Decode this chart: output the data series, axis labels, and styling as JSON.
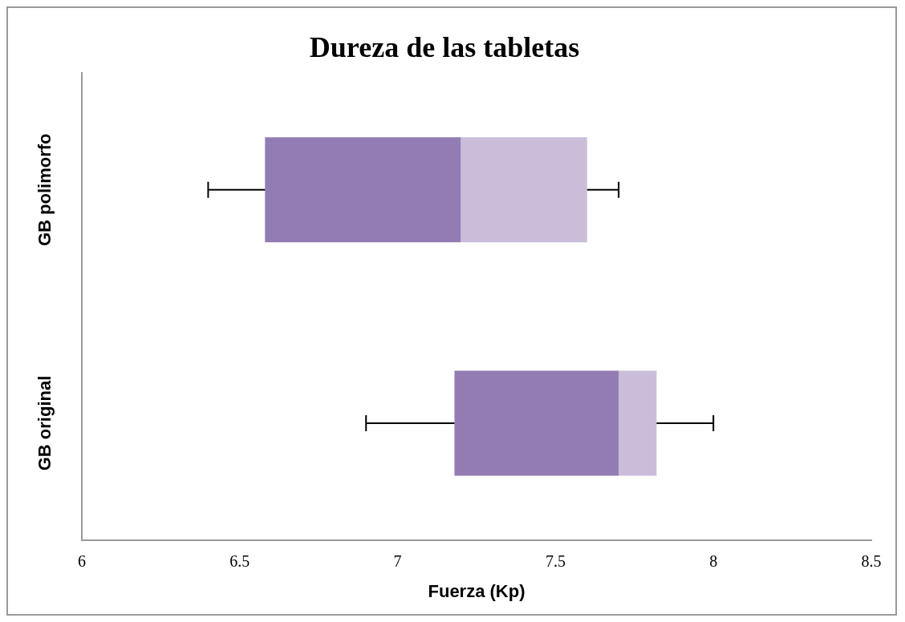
{
  "chart_data": {
    "type": "box",
    "orientation": "horizontal",
    "title": "Dureza de las tabletas",
    "xlabel": "Fuerza (Kp)",
    "categories": [
      "GB polimorfo",
      "GB original"
    ],
    "boxes": [
      {
        "low": 6.4,
        "q1": 6.58,
        "median": 7.2,
        "q3": 7.6,
        "high": 7.7
      },
      {
        "low": 6.9,
        "q1": 7.18,
        "median": 7.7,
        "q3": 7.82,
        "high": 8.0
      }
    ],
    "color": "#937cb3",
    "xlim": [
      6,
      8.5
    ],
    "xticks": [
      6,
      6.5,
      7,
      7.5,
      8,
      8.5
    ],
    "grid": false,
    "legend": false
  }
}
